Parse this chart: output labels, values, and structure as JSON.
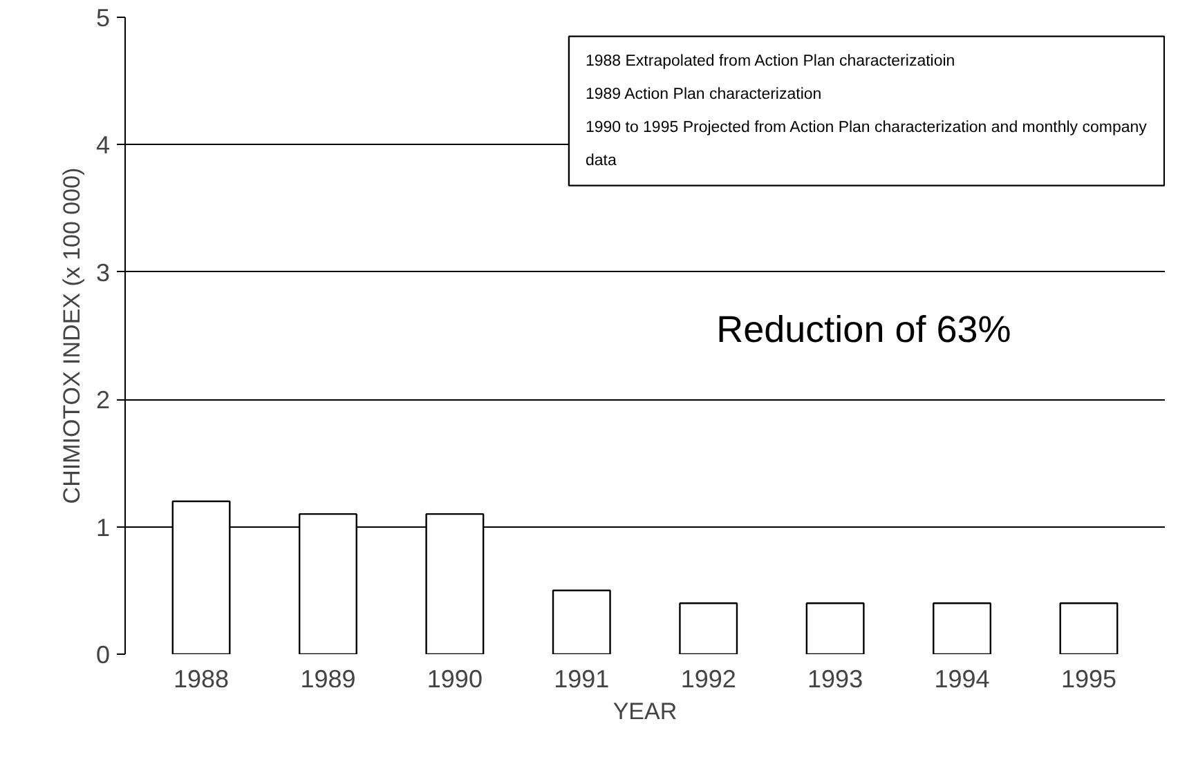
{
  "chart_data": {
    "type": "bar",
    "xlabel": "YEAR",
    "ylabel": "CHIMIOTOX INDEX (x 100 000)",
    "categories": [
      "1988",
      "1989",
      "1990",
      "1991",
      "1992",
      "1993",
      "1994",
      "1995"
    ],
    "values": [
      1.2,
      1.1,
      1.1,
      0.5,
      0.4,
      0.4,
      0.4,
      0.4
    ],
    "color": "#ffffff",
    "ylim": [
      0,
      5
    ],
    "yticks": [
      0,
      1,
      2,
      3,
      4,
      5
    ],
    "grid": "y",
    "annotations": [
      "1988 Extrapolated from Action Plan characterizatioin",
      "1989 Action Plan characterization",
      "1990 to 1995 Projected from Action Plan characterization and monthly company data",
      "Reduction of 63%"
    ]
  }
}
